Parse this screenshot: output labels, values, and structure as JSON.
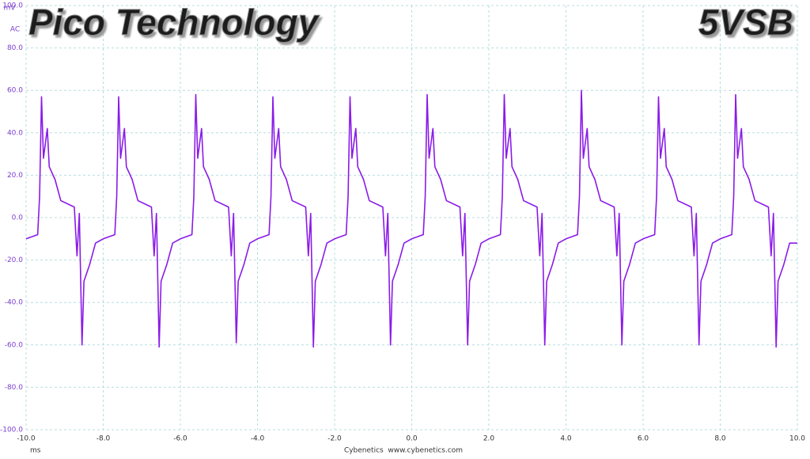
{
  "chart_data": {
    "type": "line",
    "title": "Pico Technology",
    "subtitle": "5VSB",
    "y_unit": "mV",
    "y_coupling": "AC",
    "x_unit": "ms",
    "footer": "Cybenetics  www.cybenetics.com",
    "xlim": [
      -10,
      10
    ],
    "ylim": [
      -100,
      100
    ],
    "xticks": [
      {
        "value": -10,
        "label": "-10.0"
      },
      {
        "value": -8,
        "label": "-8.0"
      },
      {
        "value": -6,
        "label": "-6.0"
      },
      {
        "value": -4,
        "label": "-4.0"
      },
      {
        "value": -2,
        "label": "-2.0"
      },
      {
        "value": 0,
        "label": "0.0"
      },
      {
        "value": 2,
        "label": "2.0"
      },
      {
        "value": 4,
        "label": "4.0"
      },
      {
        "value": 6,
        "label": "6.0"
      },
      {
        "value": 8,
        "label": "8.0"
      },
      {
        "value": 10,
        "label": "10.0"
      }
    ],
    "yticks": [
      {
        "value": -100,
        "label": "-100.0"
      },
      {
        "value": -80,
        "label": "-80.0"
      },
      {
        "value": -60,
        "label": "-60.0"
      },
      {
        "value": -40,
        "label": "-40.0"
      },
      {
        "value": -20,
        "label": "-20.0"
      },
      {
        "value": 0,
        "label": "0.0"
      },
      {
        "value": 20,
        "label": "20.0"
      },
      {
        "value": 40,
        "label": "40.0"
      },
      {
        "value": 60,
        "label": "60.0"
      },
      {
        "value": 80,
        "label": "80.0"
      },
      {
        "value": 100,
        "label": "100.0"
      }
    ],
    "grid": true,
    "x": [
      -10,
      -9.7,
      -9.65,
      -9.6,
      -9.55,
      -9.45,
      -9.4,
      -9.25,
      -9.1,
      -8.75,
      -8.68,
      -8.62,
      -8.55,
      -8.5,
      -8.35,
      -8.2,
      -8,
      -7.7,
      -7.65,
      -7.6,
      -7.55,
      -7.45,
      -7.4,
      -7.25,
      -7.1,
      -6.75,
      -6.68,
      -6.62,
      -6.55,
      -6.5,
      -6.35,
      -6.2,
      -6,
      -5.7,
      -5.65,
      -5.6,
      -5.55,
      -5.45,
      -5.4,
      -5.25,
      -5.1,
      -4.75,
      -4.68,
      -4.62,
      -4.55,
      -4.5,
      -4.35,
      -4.2,
      -4,
      -3.7,
      -3.65,
      -3.6,
      -3.55,
      -3.45,
      -3.4,
      -3.25,
      -3.1,
      -2.75,
      -2.68,
      -2.62,
      -2.55,
      -2.5,
      -2.35,
      -2.2,
      -2,
      -1.7,
      -1.65,
      -1.6,
      -1.55,
      -1.45,
      -1.4,
      -1.25,
      -1.1,
      -0.75,
      -0.68,
      -0.62,
      -0.55,
      -0.5,
      -0.35,
      -0.2,
      0,
      0.3,
      0.35,
      0.4,
      0.45,
      0.55,
      0.6,
      0.75,
      0.9,
      1.25,
      1.32,
      1.38,
      1.45,
      1.5,
      1.65,
      1.8,
      2,
      2.3,
      2.35,
      2.4,
      2.45,
      2.55,
      2.6,
      2.75,
      2.9,
      3.25,
      3.32,
      3.38,
      3.45,
      3.5,
      3.65,
      3.8,
      4,
      4.3,
      4.35,
      4.4,
      4.45,
      4.55,
      4.6,
      4.75,
      4.9,
      5.25,
      5.32,
      5.38,
      5.45,
      5.5,
      5.65,
      5.8,
      6,
      6.3,
      6.35,
      6.4,
      6.45,
      6.55,
      6.6,
      6.75,
      6.9,
      7.25,
      7.32,
      7.38,
      7.45,
      7.5,
      7.65,
      7.8,
      8,
      8.3,
      8.35,
      8.4,
      8.45,
      8.55,
      8.6,
      8.75,
      8.9,
      9.25,
      9.32,
      9.38,
      9.45,
      9.5,
      9.65,
      9.8,
      10
    ],
    "series": [
      {
        "name": "A",
        "color": "#8a1be8",
        "values": [
          -10,
          -8,
          10,
          57,
          28,
          42,
          24,
          18,
          8,
          5,
          -18,
          2,
          -60,
          -30,
          -22,
          -12,
          -10,
          -8,
          10,
          57,
          28,
          42,
          24,
          18,
          8,
          5,
          -18,
          2,
          -61,
          -30,
          -22,
          -12,
          -10,
          -8,
          10,
          58,
          28,
          42,
          24,
          18,
          8,
          5,
          -18,
          2,
          -59,
          -30,
          -22,
          -12,
          -10,
          -8,
          10,
          57,
          28,
          42,
          24,
          18,
          8,
          5,
          -18,
          2,
          -61,
          -30,
          -22,
          -12,
          -10,
          -8,
          10,
          57,
          28,
          42,
          24,
          18,
          8,
          5,
          -18,
          2,
          -60,
          -30,
          -22,
          -12,
          -10,
          -8,
          10,
          58,
          28,
          42,
          24,
          18,
          8,
          5,
          -18,
          2,
          -60,
          -30,
          -22,
          -12,
          -10,
          -8,
          10,
          58,
          28,
          42,
          24,
          18,
          8,
          5,
          -18,
          2,
          -60,
          -30,
          -22,
          -12,
          -10,
          -8,
          10,
          60,
          28,
          42,
          24,
          18,
          8,
          5,
          -18,
          2,
          -60,
          -30,
          -22,
          -12,
          -10,
          -8,
          10,
          57,
          28,
          42,
          24,
          18,
          8,
          5,
          -18,
          2,
          -60,
          -30,
          -22,
          -12,
          -10,
          -8,
          10,
          58,
          28,
          42,
          24,
          18,
          8,
          5,
          -18,
          2,
          -61,
          -30,
          -22,
          -12,
          -12
        ]
      }
    ]
  }
}
